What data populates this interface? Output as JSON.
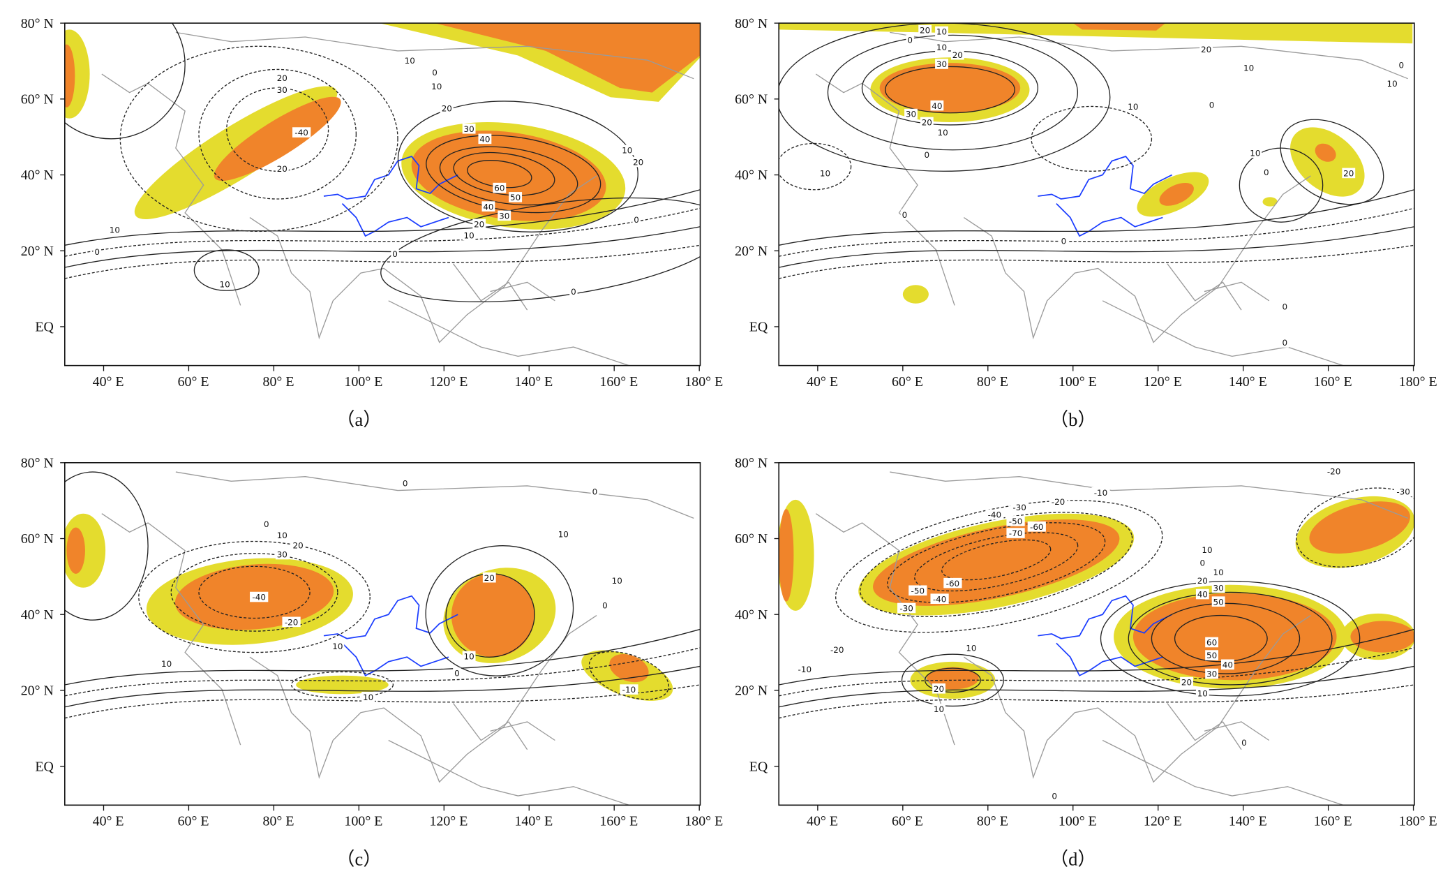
{
  "figure": {
    "colors": {
      "shade_low": "#e4dc2e",
      "shade_high": "#f0842a",
      "contour": "#222222",
      "coast": "#9a9a9a",
      "river": "#1a3cff"
    },
    "lat_ticks": [
      "80° N",
      "60° N",
      "40° N",
      "20° N",
      "EQ"
    ],
    "lon_ticks": [
      "40° E",
      "60° E",
      "80° E",
      "100° E",
      "120° E",
      "140° E",
      "160° E",
      "180° E"
    ],
    "panels": [
      {
        "caption": "（a）",
        "contour_labels": [
          "10",
          "20",
          "30",
          "-40",
          "20",
          "10",
          "0",
          "0",
          "10",
          "20",
          "30",
          "40",
          "60",
          "50",
          "40",
          "30",
          "20",
          "10",
          "10",
          "20",
          "0",
          "0",
          "10",
          "0"
        ]
      },
      {
        "caption": "（b）",
        "contour_labels": [
          "20",
          "10",
          "0",
          "10",
          "20",
          "30",
          "40",
          "30",
          "20",
          "10",
          "0",
          "10",
          "10",
          "0",
          "20",
          "10",
          "0",
          "10",
          "10",
          "0",
          "20",
          "0",
          "0",
          "0",
          "0"
        ]
      },
      {
        "caption": "（c）",
        "contour_labels": [
          "0",
          "0",
          "0",
          "10",
          "20",
          "30",
          "-40",
          "-20",
          "10",
          "10",
          "10",
          "10",
          "10",
          "0",
          "20",
          "10",
          "0",
          "-10"
        ]
      },
      {
        "caption": "（d）",
        "contour_labels": [
          "-20",
          "-30",
          "-10",
          "-20",
          "-30",
          "-40",
          "-50",
          "-60",
          "-70",
          "-60",
          "-50",
          "-40",
          "-30",
          "-20",
          "-10",
          "10",
          "20",
          "10",
          "10",
          "0",
          "10",
          "20",
          "30",
          "40",
          "50",
          "60",
          "50",
          "40",
          "30",
          "20",
          "10",
          "0",
          "0"
        ]
      }
    ]
  }
}
